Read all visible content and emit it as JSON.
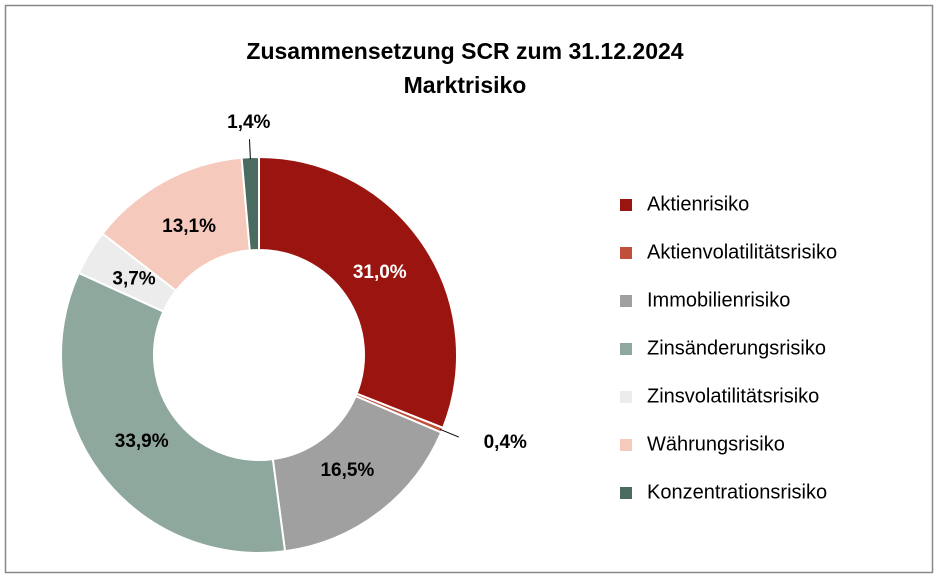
{
  "chart_data": {
    "type": "donut",
    "title": "Zusammensetzung SCR zum 31.12.2024",
    "subtitle": "Marktrisiko",
    "categories": [
      "Aktienrisiko",
      "Aktienvolatilitätsrisiko",
      "Immobilienrisiko",
      "Zinsänderungsrisiko",
      "Zinsvolatilitätsrisiko",
      "Währungsrisiko",
      "Konzentrationsrisiko"
    ],
    "values": [
      31.0,
      0.4,
      16.5,
      33.9,
      3.7,
      13.1,
      1.4
    ],
    "value_labels": [
      "31,0%",
      "0,4%",
      "16,5%",
      "33,9%",
      "3,7%",
      "13,1%",
      "1,4%"
    ],
    "colors": [
      "#9b1510",
      "#c0503c",
      "#a0a0a0",
      "#8fa89e",
      "#ececec",
      "#f5c9bb",
      "#4a6b60"
    ],
    "legend": "right"
  }
}
